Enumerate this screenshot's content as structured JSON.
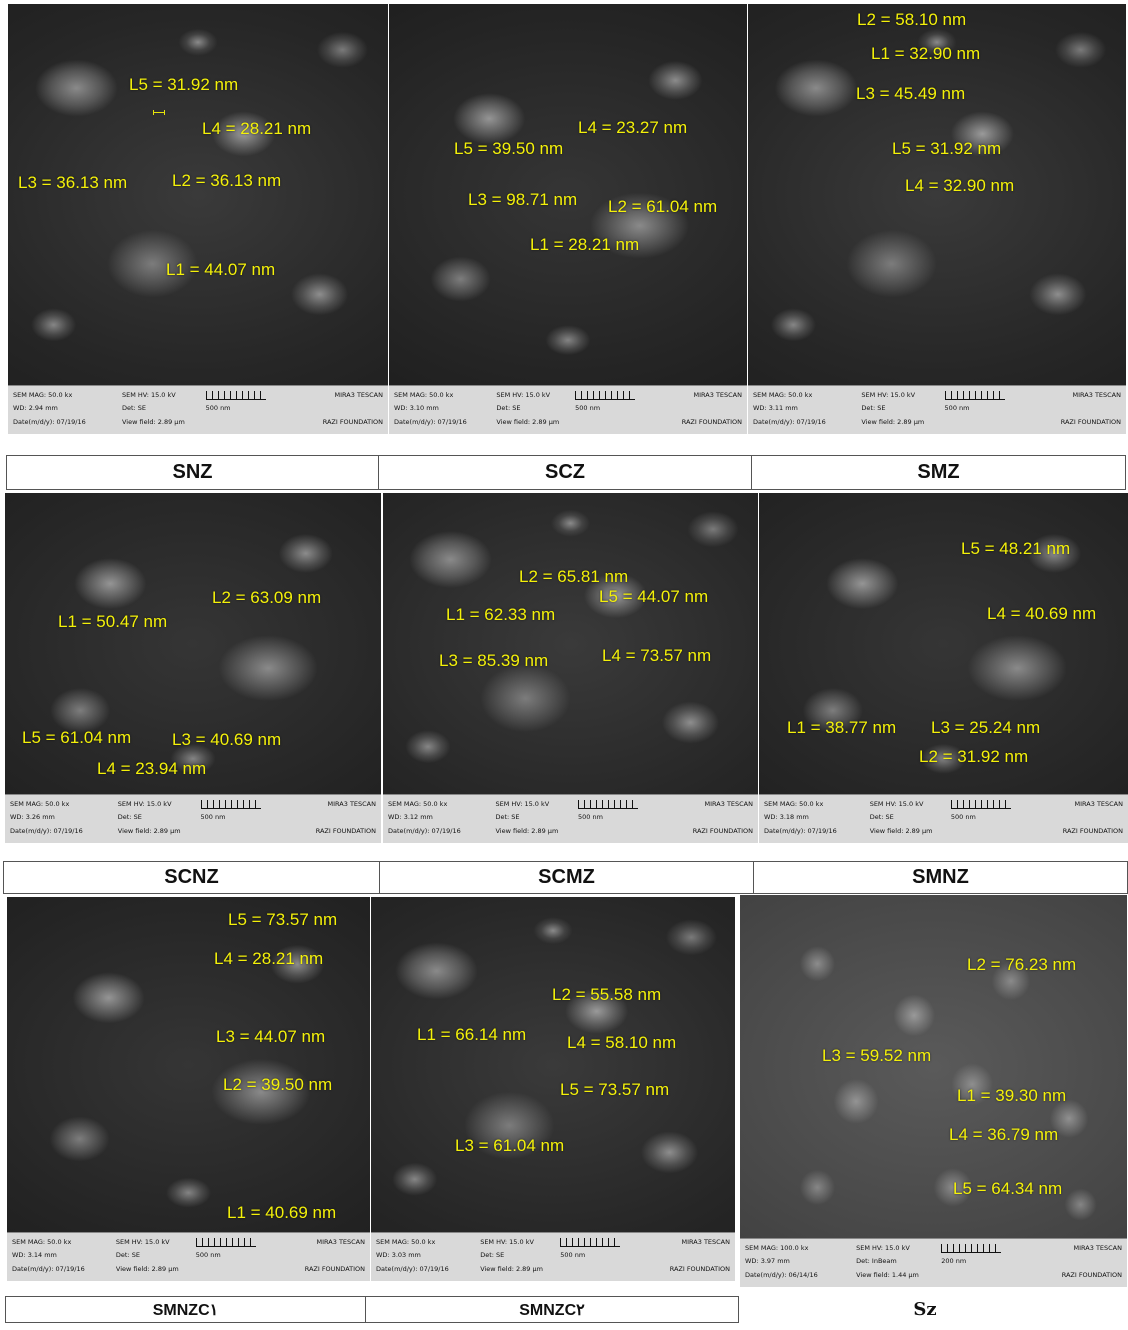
{
  "panels": {
    "snz": {
      "mag": "SEM MAG: 50.0 kx",
      "hv": "SEM HV: 15.0 kV",
      "wd": "WD: 2.94 mm",
      "det": "Det: SE",
      "date": "Date(m/d/y): 07/19/16",
      "field": "View field: 2.89 µm",
      "scale": "500 nm",
      "brand": "MIRA3 TESCAN",
      "lab": "RAZI FOUNDATION",
      "m": [
        "L5 = 31.92 nm",
        "L4 = 28.21 nm",
        "L3 = 36.13 nm",
        "L2 = 36.13 nm",
        "L1 = 44.07 nm"
      ]
    },
    "scz": {
      "mag": "SEM MAG: 50.0 kx",
      "hv": "SEM HV: 15.0 kV",
      "wd": "WD: 3.10 mm",
      "det": "Det: SE",
      "date": "Date(m/d/y): 07/19/16",
      "field": "View field: 2.89 µm",
      "scale": "500 nm",
      "brand": "MIRA3 TESCAN",
      "lab": "RAZI FOUNDATION",
      "m": [
        "L4 = 23.27 nm",
        "L5 = 39.50 nm",
        "L3 = 98.71 nm",
        "L2 = 61.04 nm",
        "L1 = 28.21 nm"
      ]
    },
    "smz": {
      "mag": "SEM MAG: 50.0 kx",
      "hv": "SEM HV: 15.0 kV",
      "wd": "WD: 3.11 mm",
      "det": "Det: SE",
      "date": "Date(m/d/y): 07/19/16",
      "field": "View field: 2.89 µm",
      "scale": "500 nm",
      "brand": "MIRA3 TESCAN",
      "lab": "RAZI FOUNDATION",
      "m": [
        "L2 = 58.10 nm",
        "L1 = 32.90 nm",
        "L3 = 45.49 nm",
        "L5 = 31.92 nm",
        "L4 = 32.90 nm"
      ]
    },
    "scnz": {
      "mag": "SEM MAG: 50.0 kx",
      "hv": "SEM HV: 15.0 kV",
      "wd": "WD: 3.26 mm",
      "det": "Det: SE",
      "date": "Date(m/d/y): 07/19/16",
      "field": "View field: 2.89 µm",
      "scale": "500 nm",
      "brand": "MIRA3 TESCAN",
      "lab": "RAZI FOUNDATION",
      "m": [
        "L2 = 63.09 nm",
        "L1 = 50.47 nm",
        "L5 = 61.04 nm",
        "L3 = 40.69 nm",
        "L4 = 23.94 nm"
      ]
    },
    "scmz": {
      "mag": "SEM MAG: 50.0 kx",
      "hv": "SEM HV: 15.0 kV",
      "wd": "WD: 3.12 mm",
      "det": "Det: SE",
      "date": "Date(m/d/y): 07/19/16",
      "field": "View field: 2.89 µm",
      "scale": "500 nm",
      "brand": "MIRA3 TESCAN",
      "lab": "RAZI FOUNDATION",
      "m": [
        "L2 = 65.81 nm",
        "L5 = 44.07 nm",
        "L1 = 62.33 nm",
        "L3 = 85.39 nm",
        "L4 = 73.57 nm"
      ]
    },
    "smnz": {
      "mag": "SEM MAG: 50.0 kx",
      "hv": "SEM HV: 15.0 kV",
      "wd": "WD: 3.18 mm",
      "det": "Det: SE",
      "date": "Date(m/d/y): 07/19/16",
      "field": "View field: 2.89 µm",
      "scale": "500 nm",
      "brand": "MIRA3 TESCAN",
      "lab": "RAZI FOUNDATION",
      "m": [
        "L5 = 48.21 nm",
        "L4 = 40.69 nm",
        "L1 = 38.77 nm",
        "L3 = 25.24 nm",
        "L2 = 31.92 nm"
      ]
    },
    "smnzc1": {
      "mag": "SEM MAG: 50.0 kx",
      "hv": "SEM HV: 15.0 kV",
      "wd": "WD: 3.14 mm",
      "det": "Det: SE",
      "date": "Date(m/d/y): 07/19/16",
      "field": "View field: 2.89 µm",
      "scale": "500 nm",
      "brand": "MIRA3 TESCAN",
      "lab": "RAZI FOUNDATION",
      "m": [
        "L5 = 73.57 nm",
        "L4 = 28.21 nm",
        "L3 = 44.07 nm",
        "L2 = 39.50 nm",
        "L1 = 40.69 nm"
      ]
    },
    "smnzc2": {
      "mag": "SEM MAG: 50.0 kx",
      "hv": "SEM HV: 15.0 kV",
      "wd": "WD: 3.03 mm",
      "det": "Det: SE",
      "date": "Date(m/d/y): 07/19/16",
      "field": "View field: 2.89 µm",
      "scale": "500 nm",
      "brand": "MIRA3 TESCAN",
      "lab": "RAZI FOUNDATION",
      "m": [
        "L2 = 55.58 nm",
        "L1 = 66.14 nm",
        "L4 = 58.10 nm",
        "L5 = 73.57 nm",
        "L3 = 61.04 nm"
      ]
    },
    "sz": {
      "mag": "SEM MAG: 100.0 kx",
      "hv": "SEM HV: 15.0 kV",
      "wd": "WD: 3.97 mm",
      "det": "Det: InBeam",
      "date": "Date(m/d/y): 06/14/16",
      "field": "View field: 1.44 µm",
      "scale": "200 nm",
      "brand": "MIRA3 TESCAN",
      "lab": "RAZI FOUNDATION",
      "m": [
        "L2 = 76.23 nm",
        "L3 = 59.52 nm",
        "L1 = 39.30 nm",
        "L4 = 36.79 nm",
        "L5 = 64.34 nm"
      ]
    }
  },
  "labels": {
    "snz": "SNZ",
    "scz": "SCZ",
    "smz": "SMZ",
    "scnz": "SCNZ",
    "scmz": "SCMZ",
    "smnz": "SMNZ",
    "smnzc1": "SMNZC١",
    "smnzc2": "SMNZC۲",
    "sz": "Sz"
  },
  "colors": {
    "measure": "#f4f10a"
  }
}
